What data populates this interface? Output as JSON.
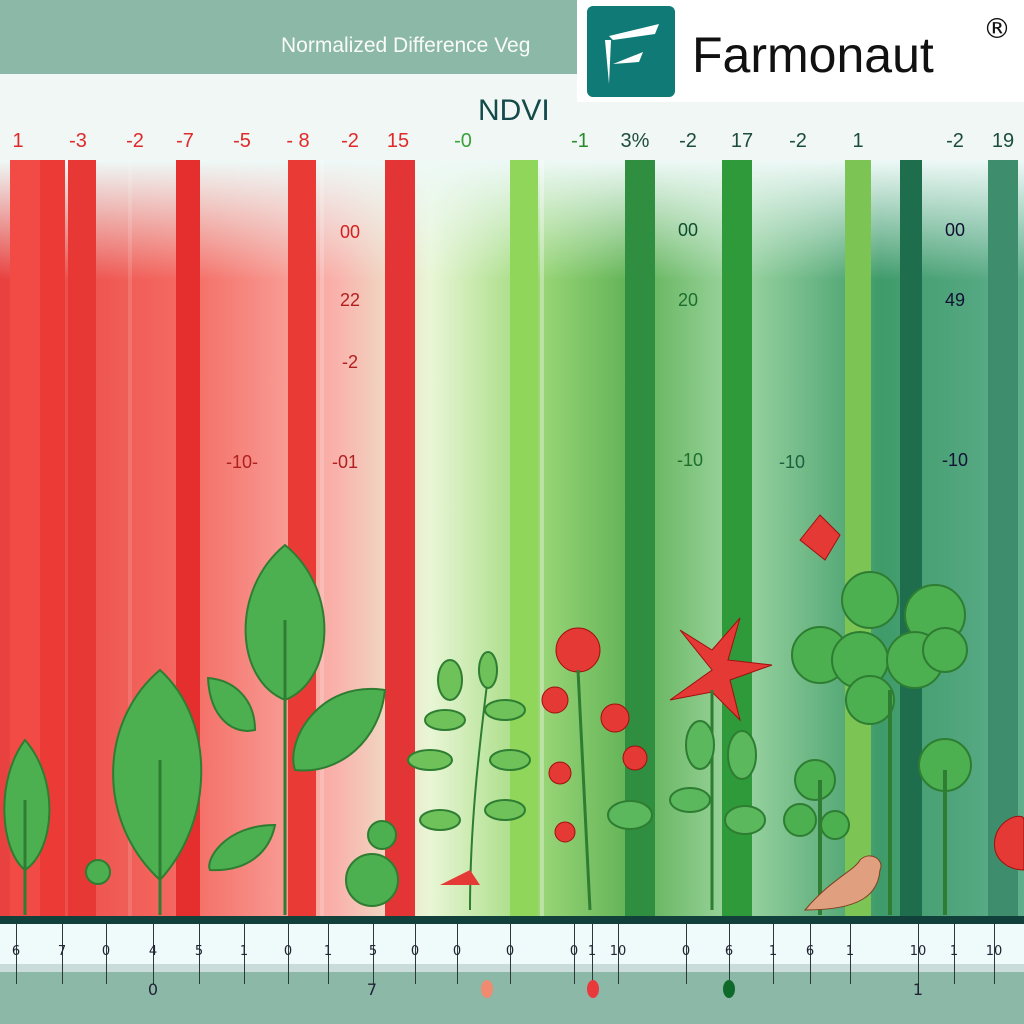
{
  "header": {
    "subtitle": "Normalized Difference Veg",
    "title": "NDVI"
  },
  "logo": {
    "name": "Farmonaut",
    "registered": "®",
    "color": "#0f7a76"
  },
  "top_labels": [
    {
      "t": "1",
      "c": "#e02a2a"
    },
    {
      "t": "-3",
      "c": "#e02a2a"
    },
    {
      "t": "-2",
      "c": "#e02a2a"
    },
    {
      "t": "-7",
      "c": "#e02a2a"
    },
    {
      "t": "-5",
      "c": "#e02a2a"
    },
    {
      "t": "- 8",
      "c": "#e02a2a"
    },
    {
      "t": "-2",
      "c": "#e02a2a"
    },
    {
      "t": "15",
      "c": "#e02a2a"
    },
    {
      "t": "-0",
      "c": "#3aa23a"
    },
    {
      "t": "-1",
      "c": "#2a8a2a"
    },
    {
      "t": "3%",
      "c": "#1d4d3d"
    },
    {
      "t": "-2",
      "c": "#1d4d3d"
    },
    {
      "t": "17",
      "c": "#1d4d3d"
    },
    {
      "t": "-2",
      "c": "#1d4d3d"
    },
    {
      "t": "1",
      "c": "#1d4d3d"
    },
    {
      "t": "-2",
      "c": "#1d4d3d"
    },
    {
      "t": "19",
      "c": "#1d4d3d"
    }
  ],
  "mid_labels": [
    {
      "t": "00",
      "c": "#d42020"
    },
    {
      "t": "22",
      "c": "#b02020"
    },
    {
      "t": "-2",
      "c": "#b02020"
    },
    {
      "t": "-10-",
      "c": "#b02020"
    },
    {
      "t": "-01",
      "c": "#b02020"
    },
    {
      "t": "00",
      "c": "#0e4d2e"
    },
    {
      "t": "20",
      "c": "#1e6e2e"
    },
    {
      "t": "-10",
      "c": "#1e6e2e"
    },
    {
      "t": "-10",
      "c": "#1e5e3e"
    },
    {
      "t": "00",
      "c": "#113"
    },
    {
      "t": "49",
      "c": "#113"
    },
    {
      "t": "-10",
      "c": "#113"
    }
  ],
  "ruler": {
    "labels": [
      "6",
      "7",
      "0",
      "4",
      "5",
      "1",
      "0",
      "1",
      "5",
      "0",
      "0",
      "0",
      "0",
      "1",
      "10",
      "0",
      "6",
      "1",
      "6",
      "1",
      "10",
      "1",
      "10"
    ],
    "bottom_labels": [
      "0",
      "7",
      "1"
    ],
    "markers": [
      "#f08a70",
      "#e83a3a",
      "#0e6a2a"
    ]
  }
}
